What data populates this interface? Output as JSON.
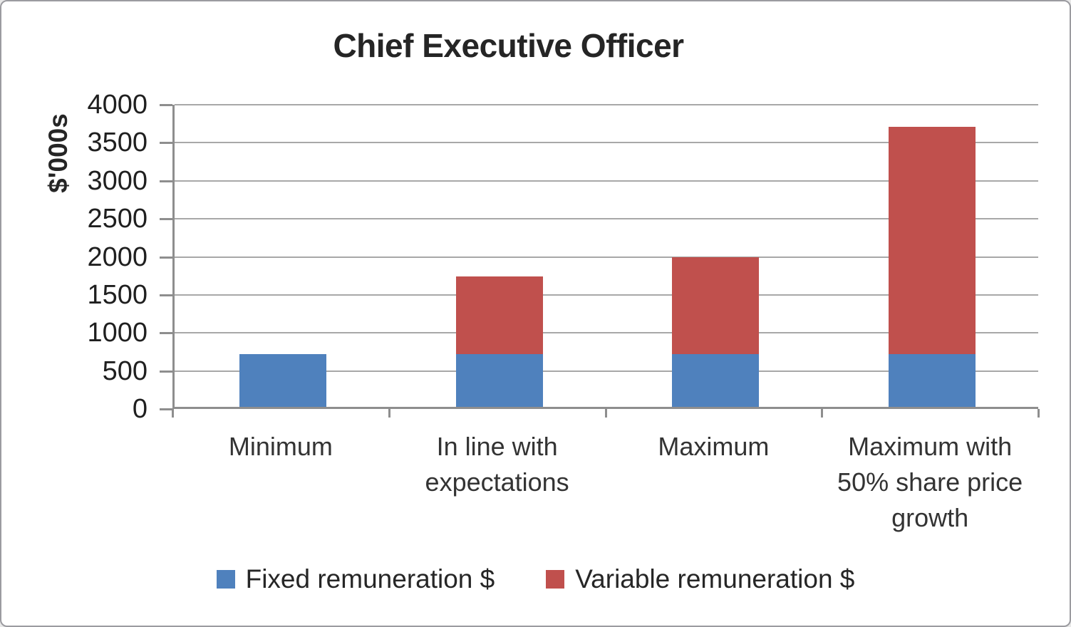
{
  "chart_data": {
    "type": "bar",
    "stacked": true,
    "title": "Chief Executive Officer",
    "ylabel": "$'000s",
    "xlabel": "",
    "categories": [
      "Minimum",
      "In line with expectations",
      "Maximum",
      "Maximum with 50% share price growth"
    ],
    "series": [
      {
        "name": "Fixed remuneration $",
        "color": "#4F81BD",
        "values": [
          690,
          690,
          690,
          690
        ]
      },
      {
        "name": "Variable remuneration $",
        "color": "#C0504D",
        "values": [
          0,
          1020,
          1280,
          2990
        ]
      }
    ],
    "totals": [
      690,
      1710,
      1970,
      3680
    ],
    "ylim": [
      0,
      4000
    ],
    "yticks": [
      0,
      500,
      1000,
      1500,
      2000,
      2500,
      3000,
      3500,
      4000
    ],
    "grid": "horizontal",
    "legend_position": "bottom",
    "colors": {
      "axis": "#8e8e8e",
      "gridline": "#a8a8a8",
      "frame_border": "#9b9ba0",
      "title_text": "#252525",
      "tick_text": "#1f1f1f",
      "category_text": "#333333"
    }
  }
}
